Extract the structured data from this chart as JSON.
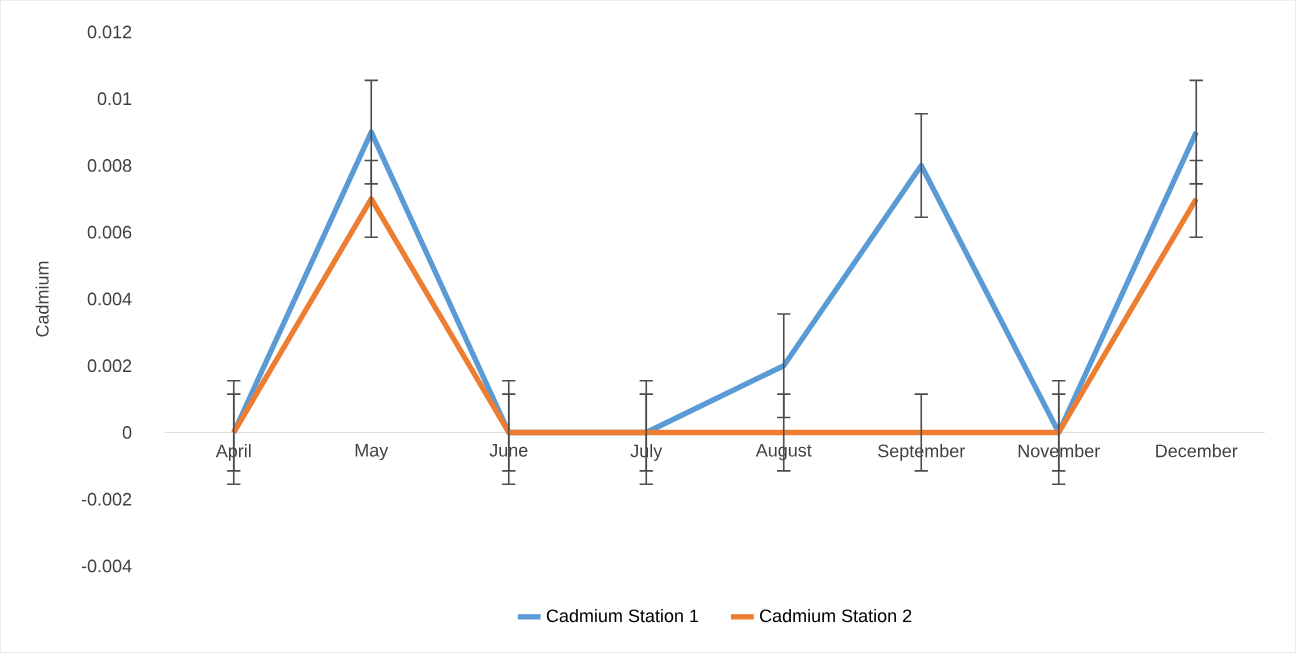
{
  "chart_data": {
    "type": "line",
    "ylabel": "Cadmium",
    "categories": [
      "April",
      "May",
      "June",
      "July",
      "August",
      "September",
      "November",
      "December"
    ],
    "series": [
      {
        "name": "Cadmium Station 1",
        "color": "#5b9bd5",
        "values": [
          0,
          0.009,
          0,
          0,
          0.002,
          0.008,
          0,
          0.009
        ],
        "errors": [
          0.00155,
          0.00155,
          0.00155,
          0.00155,
          0.00155,
          0.00155,
          0.00155,
          0.00155
        ]
      },
      {
        "name": "Cadmium Station 2",
        "color": "#ed7d31",
        "values": [
          0,
          0.007,
          0,
          0,
          0,
          0,
          0,
          0.007
        ],
        "errors": [
          0.00115,
          0.00115,
          0.00115,
          0.00115,
          0.00115,
          0.00115,
          0.00115,
          0.00115
        ]
      }
    ],
    "ylim": [
      -0.004,
      0.012
    ],
    "yticks": [
      -0.004,
      -0.002,
      0,
      0.002,
      0.004,
      0.006,
      0.008,
      0.01,
      0.012
    ],
    "legend": "bottom",
    "marker": "none",
    "line_style": "solid"
  }
}
